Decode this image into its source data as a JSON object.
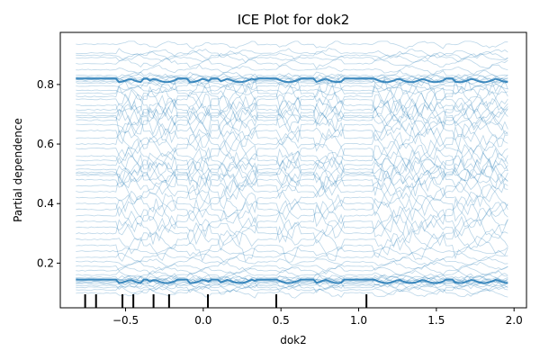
{
  "chart_data": {
    "type": "line",
    "title": "ICE Plot for dok2",
    "xlabel": "dok2",
    "ylabel": "Partial dependence",
    "xlim": [
      -0.92,
      2.08
    ],
    "ylim": [
      0.05,
      0.975
    ],
    "x_ticks": [
      -0.5,
      0.0,
      0.5,
      1.0,
      1.5,
      2.0
    ],
    "x_tick_labels": [
      "−0.5",
      "0.0",
      "0.5",
      "1.0",
      "1.5",
      "2.0"
    ],
    "y_ticks": [
      0.2,
      0.4,
      0.6,
      0.8
    ],
    "y_tick_labels": [
      "0.2",
      "0.4",
      "0.6",
      "0.8"
    ],
    "grid": false,
    "x_range": [
      -0.82,
      1.96
    ],
    "series_color": "#1f77b4",
    "rug_x": [
      -0.76,
      -0.69,
      -0.52,
      -0.45,
      -0.32,
      -0.22,
      0.03,
      0.47,
      1.05
    ],
    "curve_base_levels": [
      0.935,
      0.905,
      0.898,
      0.89,
      0.87,
      0.85,
      0.83,
      0.825,
      0.822,
      0.818,
      0.815,
      0.81,
      0.805,
      0.795,
      0.78,
      0.77,
      0.76,
      0.75,
      0.73,
      0.715,
      0.705,
      0.695,
      0.69,
      0.68,
      0.665,
      0.645,
      0.62,
      0.6,
      0.585,
      0.56,
      0.545,
      0.53,
      0.515,
      0.505,
      0.5,
      0.495,
      0.48,
      0.46,
      0.44,
      0.42,
      0.4,
      0.38,
      0.36,
      0.34,
      0.32,
      0.3,
      0.28,
      0.26,
      0.24,
      0.22,
      0.205,
      0.19,
      0.175,
      0.16,
      0.152,
      0.148,
      0.145,
      0.142,
      0.14,
      0.138,
      0.135,
      0.13,
      0.125,
      0.118,
      0.11,
      0.1
    ],
    "dip_ranges": [
      [
        -0.55,
        -0.4
      ],
      [
        -0.35,
        -0.18
      ],
      [
        -0.1,
        0.05
      ],
      [
        0.1,
        0.35
      ],
      [
        0.48,
        0.62
      ],
      [
        0.72,
        0.9
      ],
      [
        1.1,
        1.55
      ],
      [
        1.62,
        1.96
      ]
    ]
  }
}
